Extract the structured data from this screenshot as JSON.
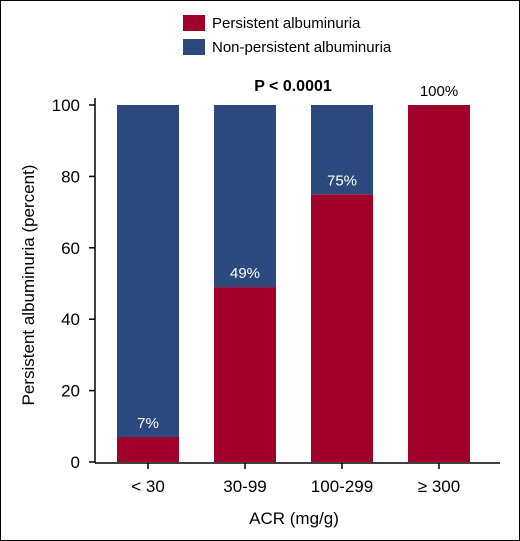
{
  "chart_data": {
    "type": "bar",
    "stacked": true,
    "categories": [
      "< 30",
      "30-99",
      "100-299",
      "≥ 300"
    ],
    "series": [
      {
        "name": "Persistent albuminuria",
        "values": [
          7,
          49,
          75,
          100
        ],
        "color": "#a0002a"
      },
      {
        "name": "Non-persistent albuminuria",
        "values": [
          93,
          51,
          25,
          0
        ],
        "color": "#2b497d"
      }
    ],
    "data_labels": [
      "7%",
      "49%",
      "75%",
      "100%"
    ],
    "annotation": "P < 0.0001",
    "xlabel": "ACR (mg/g)",
    "ylabel": "Persistent albuminuria (percent)",
    "ylim": [
      0,
      100
    ],
    "yticks": [
      "0",
      "20",
      "40",
      "60",
      "80",
      "100"
    ],
    "legend_position": "top-center",
    "grid": false
  }
}
